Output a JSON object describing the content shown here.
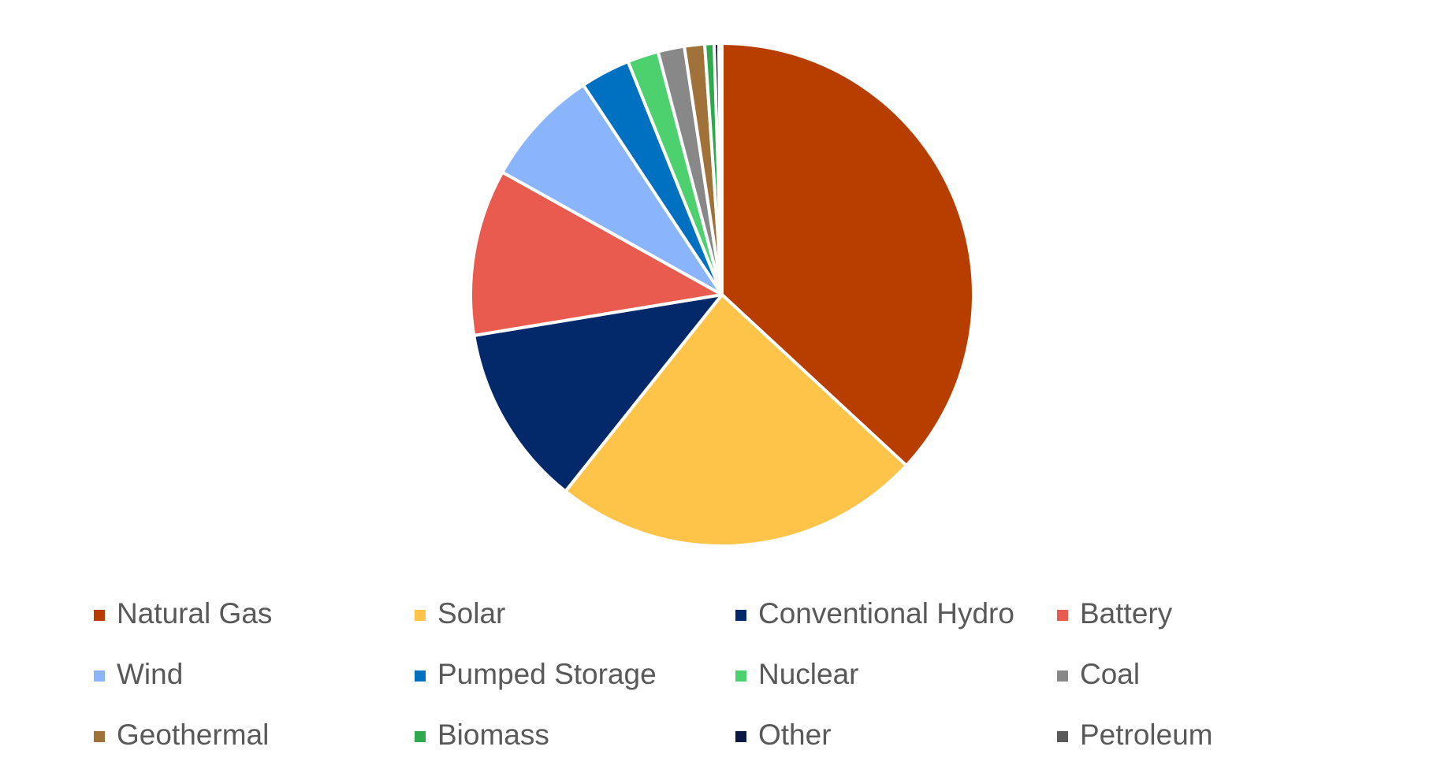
{
  "chart_data": {
    "type": "pie",
    "categories": [
      "Natural Gas",
      "Solar",
      "Conventional Hydro",
      "Battery",
      "Wind",
      "Pumped Storage",
      "Nuclear",
      "Coal",
      "Geothermal",
      "Biomass",
      "Other",
      "Petroleum"
    ],
    "values": [
      36.9,
      23.8,
      11.7,
      10.7,
      7.6,
      3.2,
      2.0,
      1.7,
      1.3,
      0.6,
      0.3,
      0.2
    ],
    "colors": [
      "#b83e00",
      "#fec44a",
      "#04296b",
      "#e95b4f",
      "#8ab4fc",
      "#0070c0",
      "#4cd16e",
      "#888888",
      "#a0723a",
      "#2eaa4c",
      "#0b1a45",
      "#5a5a5a"
    ],
    "legend": "bottom"
  }
}
